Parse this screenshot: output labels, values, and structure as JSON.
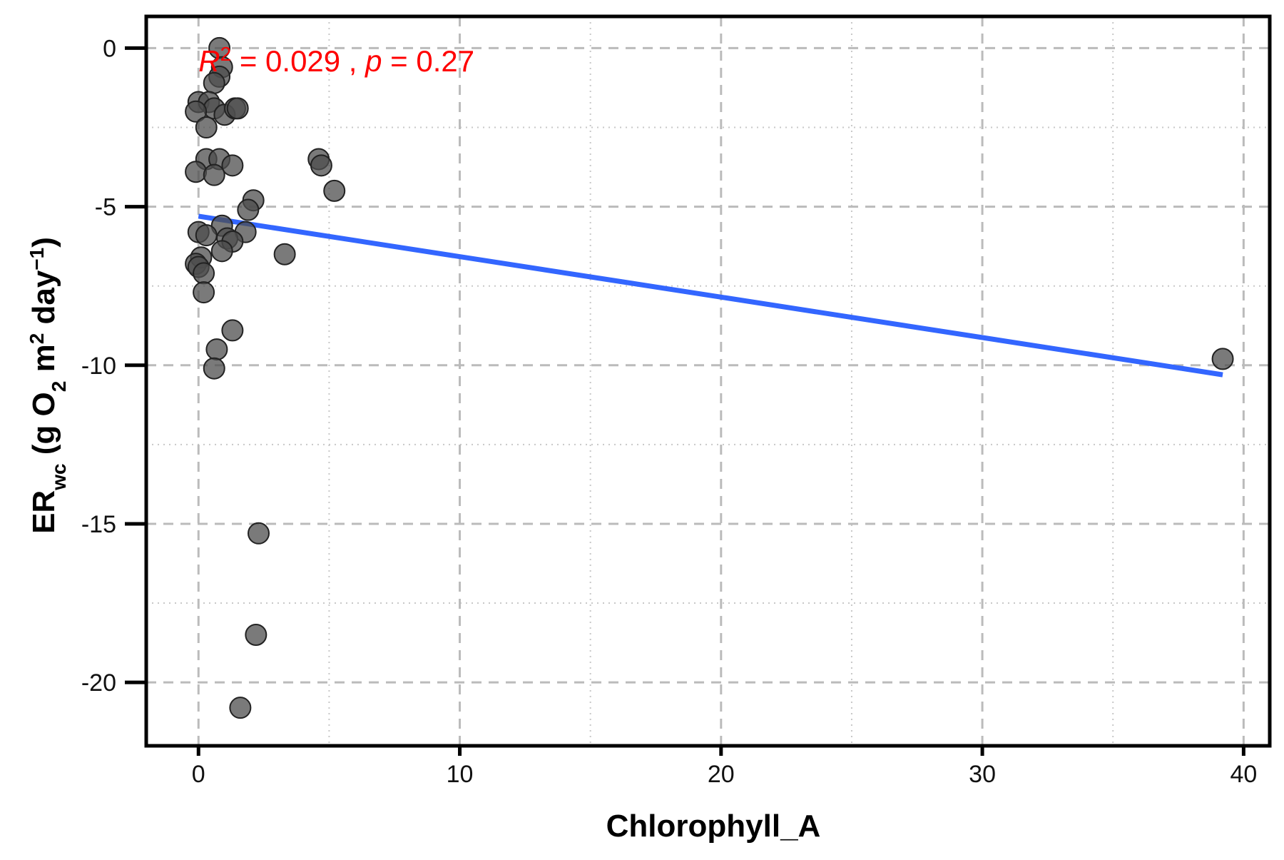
{
  "chart_data": {
    "type": "scatter",
    "xlabel": "Chlorophyll_A",
    "ylabel": {
      "main": "ER",
      "sub": "wc",
      "units_open": " (g O",
      "units_o2_sub": "2",
      "units_mid": " m",
      "units_m_sup": "2",
      "units_day": " day",
      "units_day_sup": "−1",
      "units_close": ")"
    },
    "xlim": [
      -2,
      41
    ],
    "ylim": [
      -22,
      1
    ],
    "x_ticks": [
      0,
      10,
      20,
      30,
      40
    ],
    "x_tick_labels": [
      "0",
      "10",
      "20",
      "30",
      "40"
    ],
    "y_ticks": [
      0,
      -5,
      -10,
      -15,
      -20
    ],
    "y_tick_labels": [
      "0",
      "-5",
      "-10",
      "-15",
      "-20"
    ],
    "x_minor_ticks": [
      5,
      15,
      25,
      35
    ],
    "y_minor_ticks": [
      -2.5,
      -7.5,
      -12.5,
      -17.5
    ],
    "grid": true,
    "annotation": {
      "r_label": "R",
      "r_sup": "2",
      "r_value": " = 0.029 , ",
      "p_label": "p",
      "p_value": " = 0.27",
      "x": 0,
      "y": -0.4
    },
    "points": [
      {
        "x": 0.8,
        "y": 0.0
      },
      {
        "x": 0.9,
        "y": -0.6
      },
      {
        "x": 0.8,
        "y": -0.9
      },
      {
        "x": 0.6,
        "y": -1.1
      },
      {
        "x": 0.0,
        "y": -1.7
      },
      {
        "x": 0.4,
        "y": -1.7
      },
      {
        "x": 0.6,
        "y": -1.9
      },
      {
        "x": -0.1,
        "y": -2.0
      },
      {
        "x": 1.0,
        "y": -2.1
      },
      {
        "x": 1.4,
        "y": -1.9
      },
      {
        "x": 1.5,
        "y": -1.9
      },
      {
        "x": 0.3,
        "y": -2.5
      },
      {
        "x": 0.3,
        "y": -3.5
      },
      {
        "x": 0.8,
        "y": -3.5
      },
      {
        "x": 1.3,
        "y": -3.7
      },
      {
        "x": -0.1,
        "y": -3.9
      },
      {
        "x": 0.6,
        "y": -4.0
      },
      {
        "x": 4.6,
        "y": -3.5
      },
      {
        "x": 4.7,
        "y": -3.7
      },
      {
        "x": 5.2,
        "y": -4.5
      },
      {
        "x": 2.1,
        "y": -4.8
      },
      {
        "x": 1.9,
        "y": -5.1
      },
      {
        "x": 0.9,
        "y": -5.6
      },
      {
        "x": 0.0,
        "y": -5.8
      },
      {
        "x": 0.3,
        "y": -5.9
      },
      {
        "x": 1.8,
        "y": -5.8
      },
      {
        "x": 1.1,
        "y": -6.0
      },
      {
        "x": 1.3,
        "y": -6.1
      },
      {
        "x": 0.9,
        "y": -6.4
      },
      {
        "x": 3.3,
        "y": -6.5
      },
      {
        "x": 0.1,
        "y": -6.6
      },
      {
        "x": -0.1,
        "y": -6.8
      },
      {
        "x": 0.0,
        "y": -6.9
      },
      {
        "x": 0.2,
        "y": -7.1
      },
      {
        "x": 0.2,
        "y": -7.7
      },
      {
        "x": 1.3,
        "y": -8.9
      },
      {
        "x": 0.7,
        "y": -9.5
      },
      {
        "x": 0.6,
        "y": -10.1
      },
      {
        "x": 2.3,
        "y": -15.3
      },
      {
        "x": 2.2,
        "y": -18.5
      },
      {
        "x": 1.6,
        "y": -20.8
      },
      {
        "x": 39.2,
        "y": -9.8
      }
    ],
    "regression_line": {
      "x": [
        0,
        39.2
      ],
      "y": [
        -5.3,
        -10.3
      ]
    },
    "colors": {
      "points": "#4d4d4d",
      "line": "#3366ff",
      "annotation": "#ff0000",
      "grid": "#bbbbbb",
      "minor_grid": "#c8c8c8"
    }
  }
}
